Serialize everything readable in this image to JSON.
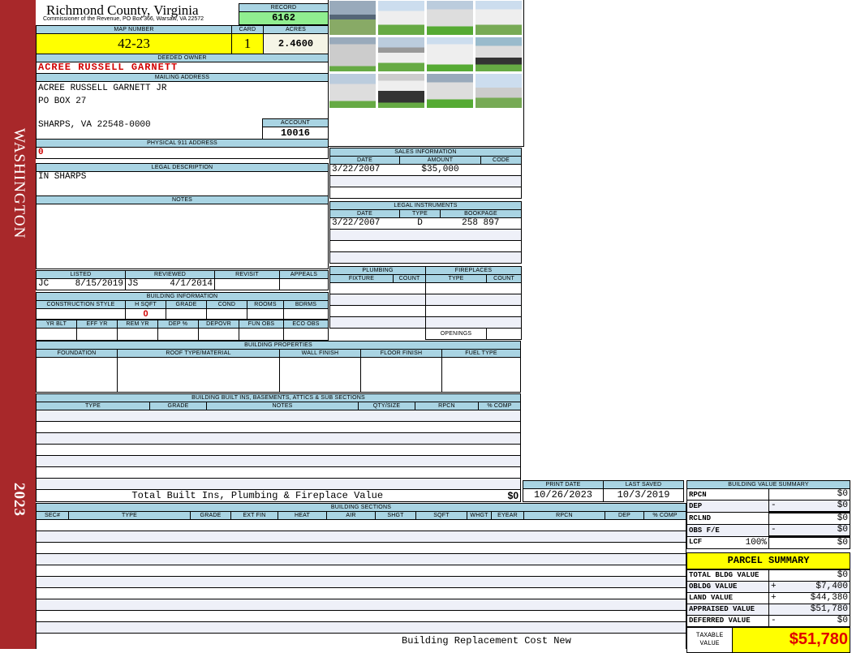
{
  "sidebar": {
    "district": "WASHINGTON",
    "year": "2023"
  },
  "header": {
    "title": "Richmond County, Virginia",
    "subtitle": "Commissioner of the Revenue, PO Box 366, Warsaw, VA 22572"
  },
  "record": {
    "label": "RECORD",
    "value": "6162"
  },
  "map": {
    "map_label": "MAP NUMBER",
    "map_value": "42-23",
    "card_label": "CARD",
    "card_value": "1",
    "acres_label": "ACRES",
    "acres_value": "2.4600"
  },
  "owner": {
    "label": "DEEDED OWNER",
    "value": "ACREE RUSSELL GARNETT"
  },
  "mailing": {
    "label": "MAILING ADDRESS",
    "lines": [
      "ACREE RUSSELL GARNETT JR",
      "PO BOX 27",
      "SHARPS, VA 22548-0000"
    ]
  },
  "account": {
    "label": "ACCOUNT",
    "value": "10016"
  },
  "physical": {
    "label": "PHYSICAL 911 ADDRESS",
    "value": "0"
  },
  "legal": {
    "label": "LEGAL DESCRIPTION",
    "value": "IN SHARPS"
  },
  "notes": {
    "label": "NOTES"
  },
  "listing": {
    "headers": [
      "LISTED",
      "REVIEWED",
      "REVISIT",
      "APPEALS"
    ],
    "listed_by": "JC",
    "listed_date": "8/15/2019",
    "reviewed_by": "JS",
    "reviewed_date": "4/1/2014"
  },
  "building_info": {
    "label": "BUILDING INFORMATION",
    "headers1": [
      "CONSTRUCTION STYLE",
      "H SQFT",
      "GRADE",
      "COND",
      "ROOMS",
      "BDRMS"
    ],
    "hsqft": "0",
    "headers2": [
      "YR BLT",
      "EFF YR",
      "REM YR",
      "DEP %",
      "DEPOVR",
      "FUN OBS",
      "ECO OBS"
    ]
  },
  "sales": {
    "label": "SALES INFORMATION",
    "headers": [
      "DATE",
      "AMOUNT",
      "CODE"
    ],
    "rows": [
      [
        "3/22/2007",
        "$35,000",
        ""
      ]
    ]
  },
  "instruments": {
    "label": "LEGAL INSTRUMENTS",
    "headers": [
      "DATE",
      "TYPE",
      "BOOKPAGE"
    ],
    "rows": [
      [
        "3/22/2007",
        "D",
        "258 897"
      ]
    ]
  },
  "plumbing": {
    "label": "PLUMBING",
    "headers": [
      "FIXTURE",
      "COUNT"
    ]
  },
  "fireplaces": {
    "label": "FIREPLACES",
    "headers": [
      "TYPE",
      "COUNT"
    ],
    "openings": "OPENINGS"
  },
  "properties": {
    "label": "BUILDING PROPERTIES",
    "headers": [
      "FOUNDATION",
      "ROOF TYPE/MATERIAL",
      "WALL FINISH",
      "FLOOR FINISH",
      "FUEL TYPE"
    ]
  },
  "builtins": {
    "label": "BUILDING BUILT INS, BASEMENTS, ATTICS & SUB SECTIONS",
    "headers": [
      "TYPE",
      "GRADE",
      "NOTES",
      "QTY/SIZE",
      "RPCN",
      "% COMP"
    ],
    "total_label": "Total Built Ins, Plumbing & Fireplace Value",
    "total_value": "$0"
  },
  "dates": {
    "print_label": "PRINT DATE",
    "print_value": "10/26/2023",
    "saved_label": "LAST SAVED",
    "saved_value": "10/3/2019"
  },
  "sections": {
    "label": "BUILDING SECTIONS",
    "headers": [
      "SEC#",
      "TYPE",
      "GRADE",
      "EXT FIN",
      "HEAT",
      "AIR",
      "SHGT",
      "SQFT",
      "WHGT",
      "EYEAR",
      "RPCN",
      "DEP",
      "% COMP"
    ],
    "footer": "Building Replacement Cost New"
  },
  "value_summary": {
    "label": "BUILDING VALUE SUMMARY",
    "rows": [
      {
        "label": "RPCN",
        "sign": "",
        "value": "$0"
      },
      {
        "label": "DEP",
        "sign": "-",
        "value": "$0"
      },
      {
        "label": "RCLND",
        "sign": "",
        "value": "$0"
      },
      {
        "label": "OBS F/E",
        "sign": "-",
        "value": "$0"
      },
      {
        "label": "LCF",
        "pct": "100%",
        "sign": "",
        "value": "$0"
      }
    ]
  },
  "parcel": {
    "label": "PARCEL SUMMARY",
    "rows": [
      {
        "label": "TOTAL BLDG VALUE",
        "sign": "",
        "value": "$0"
      },
      {
        "label": "OBLDG VALUE",
        "sign": "+",
        "value": "$7,400"
      },
      {
        "label": "LAND VALUE",
        "sign": "+",
        "value": "$44,380"
      },
      {
        "label": "APPRAISED VALUE",
        "sign": "",
        "value": "$51,780"
      },
      {
        "label": "DEFERRED VALUE",
        "sign": "-",
        "value": "$0"
      }
    ],
    "taxable_label": "TAXABLE VALUE",
    "taxable_value": "$51,780"
  },
  "colors": {
    "sidebar": "#a8282a",
    "header_blue": "#a9d4e3",
    "highlight_yellow": "#ffff00",
    "record_green": "#90ee90",
    "value_red": "#d00000"
  }
}
